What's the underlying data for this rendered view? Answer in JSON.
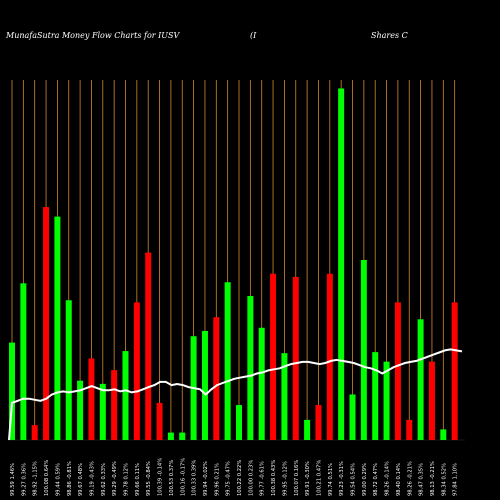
{
  "header": {
    "title": "MunafaSutra  Money Flow  Charts for IUSV",
    "middle": "(I",
    "right": "Shares C"
  },
  "chart_data": {
    "type": "bar",
    "colors": {
      "up": "#00ff00",
      "down": "#ff0000",
      "grid": "#d2872f",
      "line": "#ffffff",
      "background": "#000000"
    },
    "bars": [
      {
        "label": "99.59 1.46%",
        "value": 92,
        "color": "up"
      },
      {
        "label": "99.27 0.36%",
        "value": 148,
        "color": "up"
      },
      {
        "label": "98.92 -1.15%",
        "value": 14,
        "color": "down"
      },
      {
        "label": "100.08 0.64%",
        "value": 220,
        "color": "down"
      },
      {
        "label": "99.44 0.59%",
        "value": 211,
        "color": "up"
      },
      {
        "label": "98.86 -0.81%",
        "value": 132,
        "color": "up"
      },
      {
        "label": "99.67 0.48%",
        "value": 56,
        "color": "up"
      },
      {
        "label": "99.19 -0.43%",
        "value": 77,
        "color": "down"
      },
      {
        "label": "99.62 0.33%",
        "value": 53,
        "color": "up"
      },
      {
        "label": "99.29 -0.49%",
        "value": 66,
        "color": "down"
      },
      {
        "label": "99.78 0.12%",
        "value": 84,
        "color": "up"
      },
      {
        "label": "99.66 0.11%",
        "value": 130,
        "color": "down"
      },
      {
        "label": "99.55 -0.84%",
        "value": 177,
        "color": "down"
      },
      {
        "label": "100.39 -0.14%",
        "value": 35,
        "color": "down"
      },
      {
        "label": "100.53 0.37%",
        "value": 7,
        "color": "up"
      },
      {
        "label": "100.16 -0.17%",
        "value": 7,
        "color": "up"
      },
      {
        "label": "100.33 0.39%",
        "value": 98,
        "color": "up"
      },
      {
        "label": "99.94 -0.02%",
        "value": 103,
        "color": "up"
      },
      {
        "label": "99.96 0.21%",
        "value": 116,
        "color": "down"
      },
      {
        "label": "99.75 -0.47%",
        "value": 149,
        "color": "up"
      },
      {
        "label": "100.22 0.22%",
        "value": 33,
        "color": "up"
      },
      {
        "label": "100.00 0.23%",
        "value": 136,
        "color": "up"
      },
      {
        "label": "99.77 -0.61%",
        "value": 106,
        "color": "up"
      },
      {
        "label": "100.38 0.43%",
        "value": 157,
        "color": "down"
      },
      {
        "label": "99.95 -0.12%",
        "value": 82,
        "color": "up"
      },
      {
        "label": "100.07 0.16%",
        "value": 154,
        "color": "down"
      },
      {
        "label": "99.91 -0.30%",
        "value": 19,
        "color": "up"
      },
      {
        "label": "100.21 0.47%",
        "value": 33,
        "color": "down"
      },
      {
        "label": "99.74 0.51%",
        "value": 157,
        "color": "down"
      },
      {
        "label": "99.23 -0.31%",
        "value": 332,
        "color": "up"
      },
      {
        "label": "99.54 0.54%",
        "value": 43,
        "color": "up"
      },
      {
        "label": "99.00 0.29%",
        "value": 170,
        "color": "up"
      },
      {
        "label": "98.72 0.47%",
        "value": 83,
        "color": "up"
      },
      {
        "label": "98.26 -0.14%",
        "value": 74,
        "color": "up"
      },
      {
        "label": "98.40 0.14%",
        "value": 130,
        "color": "down"
      },
      {
        "label": "98.26 -0.21%",
        "value": 19,
        "color": "down"
      },
      {
        "label": "98.47 0.35%",
        "value": 114,
        "color": "up"
      },
      {
        "label": "98.13 -0.21%",
        "value": 74,
        "color": "down"
      },
      {
        "label": "98.34 0.52%",
        "value": 10,
        "color": "up"
      },
      {
        "label": "97.84 1.10%",
        "value": 130,
        "color": "down"
      }
    ],
    "price_line": [
      202,
      204,
      206,
      206,
      205,
      204,
      206,
      210,
      212,
      213,
      212,
      213,
      214,
      216,
      218,
      216,
      214,
      214,
      215,
      213,
      214,
      212,
      213,
      215,
      217,
      219,
      222,
      222,
      219,
      220,
      219,
      217,
      216,
      215,
      210,
      215,
      219,
      221,
      223,
      225,
      226,
      227,
      228,
      230,
      231,
      233,
      234,
      235,
      237,
      239,
      240,
      241,
      241,
      240,
      239,
      240,
      242,
      243,
      242,
      241,
      240,
      238,
      236,
      235,
      233,
      230,
      233,
      236,
      238,
      240,
      241,
      242,
      244,
      246,
      248,
      250,
      252,
      253,
      252,
      251
    ],
    "ylim": [
      0,
      340
    ]
  }
}
